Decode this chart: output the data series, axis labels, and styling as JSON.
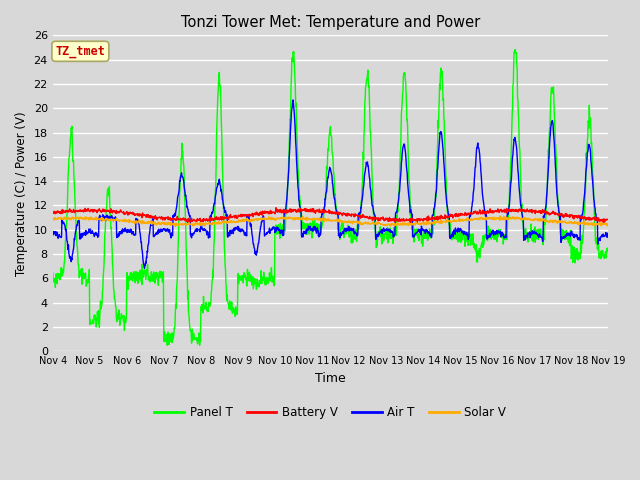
{
  "title": "Tonzi Tower Met: Temperature and Power",
  "xlabel": "Time",
  "ylabel": "Temperature (C) / Power (V)",
  "xlim": [
    0,
    15
  ],
  "ylim": [
    0,
    26
  ],
  "yticks": [
    0,
    2,
    4,
    6,
    8,
    10,
    12,
    14,
    16,
    18,
    20,
    22,
    24,
    26
  ],
  "xtick_labels": [
    "Nov 4",
    "Nov 5",
    "Nov 6",
    "Nov 7",
    "Nov 8",
    "Nov 9",
    "Nov 10",
    "Nov 11",
    "Nov 12",
    "Nov 13",
    "Nov 14",
    "Nov 15",
    "Nov 16",
    "Nov 17",
    "Nov 18",
    "Nov 19"
  ],
  "bg_color": "#d8d8d8",
  "plot_bg_color": "#d8d8d8",
  "grid_color": "#ffffff",
  "annotation_text": "TZ_tmet",
  "annotation_fg": "#cc0000",
  "annotation_bg": "#ffffcc",
  "legend_labels": [
    "Panel T",
    "Battery V",
    "Air T",
    "Solar V"
  ],
  "legend_colors": [
    "#00ff00",
    "#ff0000",
    "#0000ff",
    "#ffaa00"
  ],
  "line_width": 1.0,
  "panel_peaks": [
    18,
    13.5,
    6.5,
    16.5,
    22.5,
    5.5,
    24.5,
    18,
    23,
    23,
    23,
    8,
    25,
    22,
    19
  ],
  "panel_troughs": [
    6,
    2.5,
    6,
    1.0,
    3.5,
    6,
    10,
    10,
    9.5,
    9.5,
    9.5,
    9.5,
    9.5,
    9.5,
    8
  ],
  "air_peaks": [
    7.5,
    11,
    7,
    14.5,
    14,
    8,
    20.5,
    15,
    15.5,
    17,
    18,
    17,
    17.5,
    19,
    17
  ],
  "air_base": 10.8,
  "battery_base": 11.2,
  "solar_base": 10.7
}
